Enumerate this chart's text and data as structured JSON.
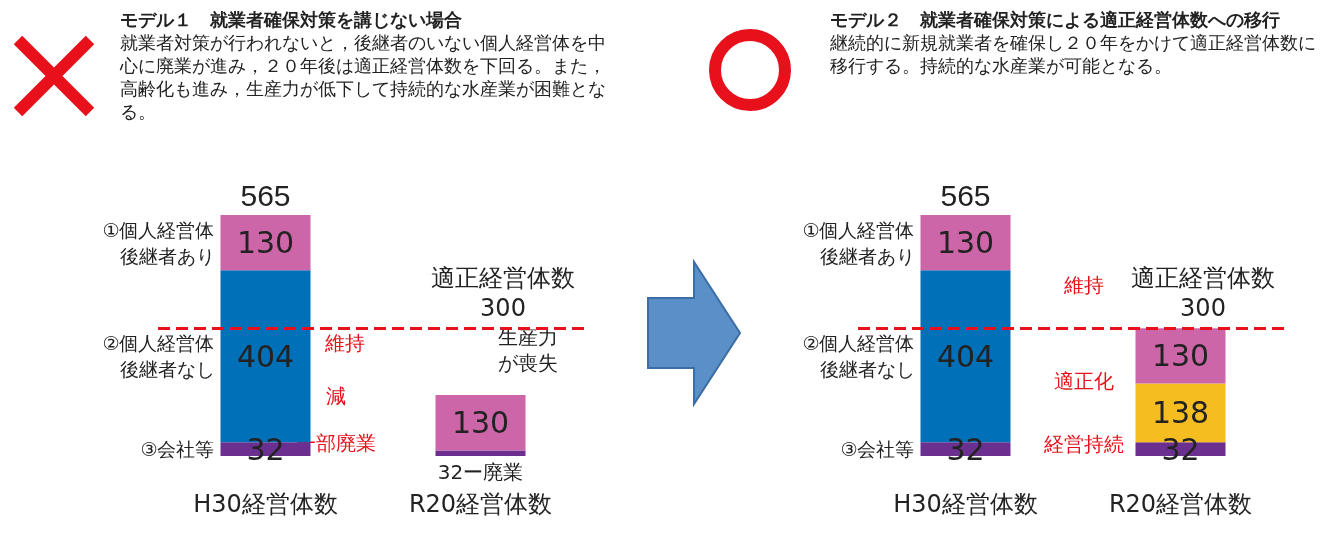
{
  "chart_data": [
    {
      "type": "bar",
      "stacked": true,
      "title": "モデル１　就業者確保対策を講じない場合",
      "subtitle": "就業者対策が行われないと，後継者のいない個人経営体を中心に廃業が進み，２０年後は適正経営体数を下回る。また，高齢化も進み，生産力が低下して持続的な水産業が困難となる。",
      "categories": [
        "H30経営体数",
        "R20経営体数"
      ],
      "series": [
        {
          "name": "③会社等",
          "color": "#6a2f8f",
          "values": [
            32,
            13
          ],
          "value_labels": [
            "32",
            null
          ]
        },
        {
          "name": "②個人経営体後継者なし",
          "color": "#0070b8",
          "values": [
            404,
            null
          ],
          "value_labels": [
            "404",
            null
          ]
        },
        {
          "name": "①個人経営体後継者あり",
          "color": "#cc66a8",
          "values": [
            130,
            130
          ],
          "value_labels": [
            "130",
            "130"
          ]
        }
      ],
      "totals": [
        "565",
        null
      ],
      "ref_lines": [
        {
          "axis": "y",
          "value": 300,
          "label": "適正経営体数\n300",
          "color": "#e8101a",
          "line_style": "dashed"
        }
      ],
      "annotations": [
        "維持",
        "減",
        "一部廃業",
        "生産力が喪失",
        "32ー廃業"
      ]
    },
    {
      "type": "bar",
      "stacked": true,
      "title": "モデル２　就業者確保対策による適正経営体数への移行",
      "subtitle": "継続的に新規就業者を確保し２０年をかけて適正経営体数に移行する。持続的な水産業が可能となる。",
      "categories": [
        "H30経営体数",
        "R20経営体数"
      ],
      "series": [
        {
          "name": "③会社等",
          "color": "#6a2f8f",
          "values": [
            32,
            32
          ]
        },
        {
          "name": "②個人経営体後継者なし",
          "color": "#0070b8",
          "values": [
            404,
            null
          ]
        },
        {
          "color": "#f5bd1f",
          "values": [
            null,
            138
          ]
        },
        {
          "name": "①個人経営体後継者あり",
          "color": "#cc66a8",
          "values": [
            130,
            130
          ]
        }
      ],
      "totals": [
        "565",
        null
      ],
      "data_labels": true,
      "ref_lines": [
        {
          "axis": "y",
          "value": 300,
          "label": "適正経営体数\n300",
          "color": "#e8101a",
          "line_style": "dashed"
        }
      ],
      "annotations": [
        "維持",
        "適正化",
        "経営持続"
      ]
    }
  ]
}
